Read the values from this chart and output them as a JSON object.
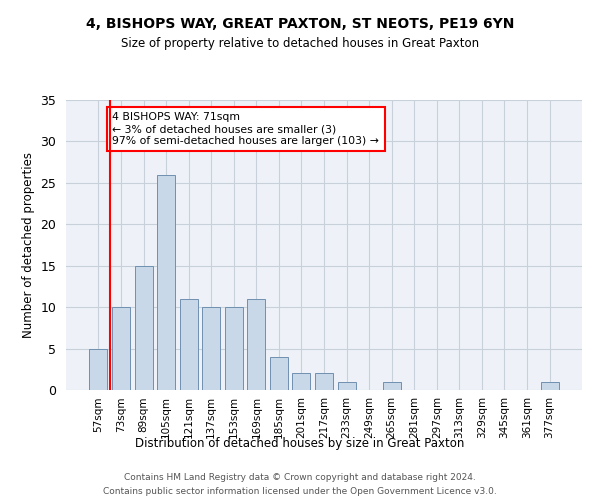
{
  "title1": "4, BISHOPS WAY, GREAT PAXTON, ST NEOTS, PE19 6YN",
  "title2": "Size of property relative to detached houses in Great Paxton",
  "xlabel": "Distribution of detached houses by size in Great Paxton",
  "ylabel": "Number of detached properties",
  "categories": [
    "57sqm",
    "73sqm",
    "89sqm",
    "105sqm",
    "121sqm",
    "137sqm",
    "153sqm",
    "169sqm",
    "185sqm",
    "201sqm",
    "217sqm",
    "233sqm",
    "249sqm",
    "265sqm",
    "281sqm",
    "297sqm",
    "313sqm",
    "329sqm",
    "345sqm",
    "361sqm",
    "377sqm"
  ],
  "values": [
    5,
    10,
    15,
    26,
    11,
    10,
    10,
    11,
    4,
    2,
    2,
    1,
    0,
    1,
    0,
    0,
    0,
    0,
    0,
    0,
    1
  ],
  "bar_color": "#c8d8e8",
  "bar_edge_color": "#7090b0",
  "grid_color": "#c8d0da",
  "bg_color": "#eef2f8",
  "red_line_x": 0.5,
  "annotation_text": "4 BISHOPS WAY: 71sqm\n← 3% of detached houses are smaller (3)\n97% of semi-detached houses are larger (103) →",
  "annotation_box_color": "white",
  "annotation_edge_color": "red",
  "ylim": [
    0,
    35
  ],
  "yticks": [
    0,
    5,
    10,
    15,
    20,
    25,
    30,
    35
  ],
  "footnote1": "Contains HM Land Registry data © Crown copyright and database right 2024.",
  "footnote2": "Contains public sector information licensed under the Open Government Licence v3.0."
}
